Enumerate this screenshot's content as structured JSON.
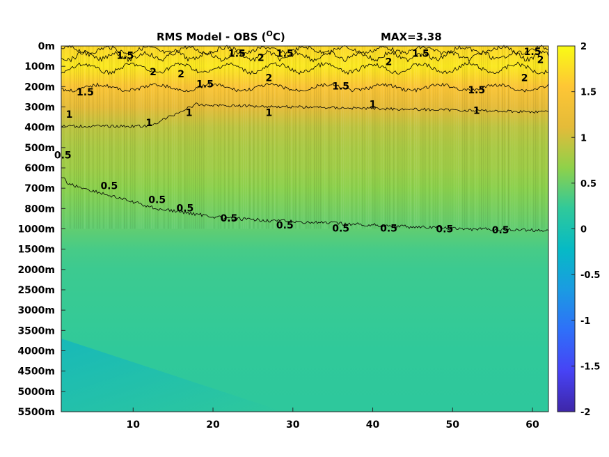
{
  "chart_data": {
    "type": "heatmap",
    "title": "RMS Model - OBS (",
    "title_unit_sup": "O",
    "title_unit_tail": "C)",
    "max_label": "MAX=3.38",
    "x": {
      "ticks": [
        "10",
        "20",
        "30",
        "40",
        "50",
        "60"
      ],
      "tick_values": [
        10,
        20,
        30,
        40,
        50,
        60
      ],
      "range": [
        1,
        62
      ]
    },
    "y": {
      "ticks": [
        "0m",
        "100m",
        "200m",
        "300m",
        "400m",
        "500m",
        "600m",
        "700m",
        "800m",
        "1000m",
        "1500m",
        "2000m",
        "2500m",
        "3000m",
        "3500m",
        "4000m",
        "4500m",
        "5000m",
        "5500m"
      ],
      "tick_values": [
        0,
        100,
        200,
        300,
        400,
        500,
        600,
        700,
        800,
        1000,
        1500,
        2000,
        2500,
        3000,
        3500,
        4000,
        4500,
        5000,
        5500
      ],
      "reversed": true,
      "nonlinear": true
    },
    "colorbar": {
      "ticks": [
        "2",
        "1.5",
        "1",
        "0.5",
        "0",
        "-0.5",
        "-1",
        "-1.5",
        "-2"
      ],
      "tick_values": [
        2,
        1.5,
        1,
        0.5,
        0,
        -0.5,
        -1,
        -1.5,
        -2
      ],
      "range": [
        -2,
        2
      ],
      "colormap": "parula",
      "stops": [
        "#3e26a8",
        "#4743f5",
        "#2f6ff9",
        "#1b9be2",
        "#06bac5",
        "#30c99a",
        "#8fd14a",
        "#e4bb39",
        "#fec635",
        "#f9fb15"
      ]
    },
    "depth_profile": [
      {
        "depth": 0,
        "value": 1.7
      },
      {
        "depth": 100,
        "value": 1.85
      },
      {
        "depth": 200,
        "value": 1.5
      },
      {
        "depth": 300,
        "value": 1.15
      },
      {
        "depth": 400,
        "value": 0.9
      },
      {
        "depth": 500,
        "value": 0.8
      },
      {
        "depth": 600,
        "value": 0.75
      },
      {
        "depth": 700,
        "value": 0.65
      },
      {
        "depth": 800,
        "value": 0.55
      },
      {
        "depth": 1000,
        "value": 0.45
      },
      {
        "depth": 1500,
        "value": 0.33
      },
      {
        "depth": 2000,
        "value": 0.28
      },
      {
        "depth": 3000,
        "value": 0.25
      },
      {
        "depth": 4000,
        "value": 0.22
      },
      {
        "depth": 5500,
        "value": 0.2
      }
    ],
    "contour_levels": [
      0.5,
      1,
      1.5,
      2
    ],
    "contour_labels": [
      {
        "text": "1.5",
        "x": 9,
        "depth": 50
      },
      {
        "text": "1.5",
        "x": 23,
        "depth": 40
      },
      {
        "text": "1.5",
        "x": 29,
        "depth": 40
      },
      {
        "text": "1.5",
        "x": 46,
        "depth": 40
      },
      {
        "text": "1.5",
        "x": 60,
        "depth": 30
      },
      {
        "text": "2",
        "x": 12.5,
        "depth": 130
      },
      {
        "text": "2",
        "x": 16,
        "depth": 140
      },
      {
        "text": "2",
        "x": 26,
        "depth": 60
      },
      {
        "text": "2",
        "x": 27,
        "depth": 160
      },
      {
        "text": "2",
        "x": 42,
        "depth": 80
      },
      {
        "text": "2",
        "x": 59,
        "depth": 160
      },
      {
        "text": "2",
        "x": 61,
        "depth": 70
      },
      {
        "text": "1.5",
        "x": 4,
        "depth": 230
      },
      {
        "text": "1.5",
        "x": 19,
        "depth": 190
      },
      {
        "text": "1.5",
        "x": 36,
        "depth": 200
      },
      {
        "text": "1.5",
        "x": 53,
        "depth": 220
      },
      {
        "text": "1",
        "x": 2,
        "depth": 340
      },
      {
        "text": "1",
        "x": 12,
        "depth": 380
      },
      {
        "text": "1",
        "x": 17,
        "depth": 330
      },
      {
        "text": "1",
        "x": 27,
        "depth": 330
      },
      {
        "text": "1",
        "x": 40,
        "depth": 290
      },
      {
        "text": "1",
        "x": 53,
        "depth": 320
      },
      {
        "text": "0.5",
        "x": 1.2,
        "depth": 540
      },
      {
        "text": "0.5",
        "x": 7,
        "depth": 690
      },
      {
        "text": "0.5",
        "x": 13,
        "depth": 760
      },
      {
        "text": "0.5",
        "x": 16.5,
        "depth": 800
      },
      {
        "text": "0.5",
        "x": 22,
        "depth": 900
      },
      {
        "text": "0.5",
        "x": 29,
        "depth": 970
      },
      {
        "text": "0.5",
        "x": 36,
        "depth": 1000
      },
      {
        "text": "0.5",
        "x": 42,
        "depth": 1000
      },
      {
        "text": "0.5",
        "x": 49,
        "depth": 1020
      },
      {
        "text": "0.5",
        "x": 56,
        "depth": 1040
      }
    ]
  }
}
